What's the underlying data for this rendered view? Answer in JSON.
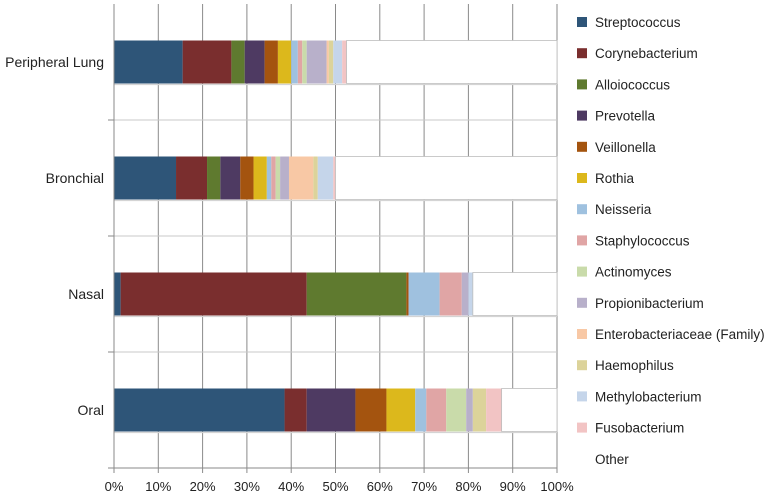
{
  "chart_data": {
    "type": "bar",
    "orientation": "horizontal",
    "stacked": true,
    "categories": [
      "Peripheral Lung",
      "Bronchial",
      "Nasal",
      "Oral"
    ],
    "xlim": [
      0,
      100
    ],
    "x_ticks": [
      "0%",
      "10%",
      "20%",
      "30%",
      "40%",
      "50%",
      "60%",
      "70%",
      "80%",
      "90%",
      "100%"
    ],
    "grid": "vertical",
    "legend_position": "right",
    "series": [
      {
        "name": "Streptococcus",
        "color": "#2e5578",
        "values": [
          15.5,
          14.0,
          1.5,
          38.5
        ]
      },
      {
        "name": "Corynebacterium",
        "color": "#7a2e2e",
        "values": [
          11.0,
          7.0,
          42.0,
          5.0
        ]
      },
      {
        "name": "Alloiococcus",
        "color": "#5f7a2f",
        "values": [
          3.0,
          3.0,
          22.5,
          0.0
        ]
      },
      {
        "name": "Prevotella",
        "color": "#4e3a62",
        "values": [
          4.5,
          4.5,
          0.0,
          11.0
        ]
      },
      {
        "name": "Veillonella",
        "color": "#a4540f",
        "values": [
          3.0,
          3.0,
          0.5,
          7.0
        ]
      },
      {
        "name": "Rothia",
        "color": "#dcb81c",
        "values": [
          3.0,
          3.0,
          0.0,
          6.5
        ]
      },
      {
        "name": "Neisseria",
        "color": "#9fc1df",
        "values": [
          1.5,
          1.0,
          7.0,
          2.5
        ]
      },
      {
        "name": "Staphylococcus",
        "color": "#e0a5a5",
        "values": [
          1.0,
          1.0,
          5.0,
          4.5
        ]
      },
      {
        "name": "Actinomyces",
        "color": "#c9dbaa",
        "values": [
          1.0,
          1.0,
          0.0,
          4.5
        ]
      },
      {
        "name": "Propionibacterium",
        "color": "#b8b0ca",
        "values": [
          4.5,
          2.0,
          1.5,
          1.5
        ]
      },
      {
        "name": "Enterobacteriaceae (Family)",
        "color": "#f8c8a5",
        "values": [
          0.5,
          5.5,
          0.0,
          0.0
        ]
      },
      {
        "name": "Haemophilus",
        "color": "#dcd39a",
        "values": [
          1.0,
          1.0,
          0.0,
          3.0
        ]
      },
      {
        "name": "Methylobacterium",
        "color": "#c5d5ea",
        "values": [
          2.0,
          3.5,
          1.0,
          0.0
        ]
      },
      {
        "name": "Fusobacterium",
        "color": "#f2c4c4",
        "values": [
          1.0,
          0.5,
          0.0,
          3.5
        ]
      },
      {
        "name": "Other",
        "color": "#ffffff",
        "values": [
          47.5,
          50.0,
          19.0,
          12.5
        ]
      }
    ]
  }
}
